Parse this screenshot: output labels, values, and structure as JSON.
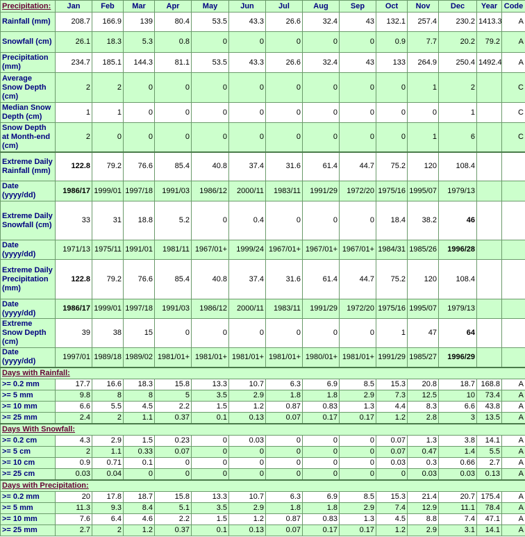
{
  "header": {
    "title": "Precipitation:",
    "columns": [
      "Jan",
      "Feb",
      "Mar",
      "Apr",
      "May",
      "Jun",
      "Jul",
      "Aug",
      "Sep",
      "Oct",
      "Nov",
      "Dec",
      "Year",
      "Code"
    ]
  },
  "sections": [
    {
      "rows": [
        {
          "label": "Rainfall (mm)",
          "cells": [
            "208.7",
            "166.9",
            "139",
            "80.4",
            "53.5",
            "43.3",
            "26.6",
            "32.4",
            "43",
            "132.1",
            "257.4",
            "230.2",
            "1413.3",
            "A"
          ]
        },
        {
          "label": "Snowfall (cm)",
          "cells": [
            "26.1",
            "18.3",
            "5.3",
            "0.8",
            "0",
            "0",
            "0",
            "0",
            "0",
            "0.9",
            "7.7",
            "20.2",
            "79.2",
            "A"
          ]
        },
        {
          "label": "Precipitation (mm)",
          "cells": [
            "234.7",
            "185.1",
            "144.3",
            "81.1",
            "53.5",
            "43.3",
            "26.6",
            "32.4",
            "43",
            "133",
            "264.9",
            "250.4",
            "1492.4",
            "A"
          ]
        },
        {
          "label": "Average Snow Depth (cm)",
          "cells": [
            "2",
            "2",
            "0",
            "0",
            "0",
            "0",
            "0",
            "0",
            "0",
            "0",
            "1",
            "2",
            null,
            "C"
          ]
        },
        {
          "label": "Median Snow Depth (cm)",
          "cells": [
            "1",
            "1",
            "0",
            "0",
            "0",
            "0",
            "0",
            "0",
            "0",
            "0",
            "0",
            "1",
            null,
            "C"
          ]
        },
        {
          "label": "Snow Depth at Month-end (cm)",
          "cells": [
            "2",
            "0",
            "0",
            "0",
            "0",
            "0",
            "0",
            "0",
            "0",
            "0",
            "1",
            "6",
            null,
            "C"
          ]
        },
        {
          "label": "Extreme Daily Rainfall (mm)",
          "cells": [
            "122.8",
            "79.2",
            "76.6",
            "85.4",
            "40.8",
            "37.4",
            "31.6",
            "61.4",
            "44.7",
            "75.2",
            "120",
            "108.4"
          ],
          "bold": [
            0
          ]
        },
        {
          "label": "Date (yyyy/dd)",
          "cells": [
            "1986/17",
            "1999/01",
            "1997/18",
            "1991/03",
            "1986/12",
            "2000/11",
            "1983/11",
            "1991/29",
            "1972/20",
            "1975/16",
            "1995/07",
            "1979/13"
          ],
          "bold": [
            0
          ]
        },
        {
          "label": "Extreme Daily Snowfall (cm)",
          "cells": [
            "33",
            "31",
            "18.8",
            "5.2",
            "0",
            "0.4",
            "0",
            "0",
            "0",
            "18.4",
            "38.2",
            "46"
          ],
          "bold": [
            11
          ]
        },
        {
          "label": "Date (yyyy/dd)",
          "cells": [
            "1971/13",
            "1975/11",
            "1991/01",
            "1981/11",
            "1967/01+",
            "1999/24",
            "1967/01+",
            "1967/01+",
            "1967/01+",
            "1984/31",
            "1985/26",
            "1996/28"
          ],
          "bold": [
            11
          ]
        },
        {
          "label": "Extreme Daily Precipitation (mm)",
          "cells": [
            "122.8",
            "79.2",
            "76.6",
            "85.4",
            "40.8",
            "37.4",
            "31.6",
            "61.4",
            "44.7",
            "75.2",
            "120",
            "108.4"
          ],
          "bold": [
            0
          ]
        },
        {
          "label": "Date (yyyy/dd)",
          "cells": [
            "1986/17",
            "1999/01",
            "1997/18",
            "1991/03",
            "1986/12",
            "2000/11",
            "1983/11",
            "1991/29",
            "1972/20",
            "1975/16",
            "1995/07",
            "1979/13"
          ],
          "bold": [
            0
          ]
        },
        {
          "label": "Extreme Snow Depth (cm)",
          "cells": [
            "39",
            "38",
            "15",
            "0",
            "0",
            "0",
            "0",
            "0",
            "0",
            "1",
            "47",
            "64"
          ],
          "bold": [
            11
          ]
        },
        {
          "label": "Date (yyyy/dd)",
          "cells": [
            "1997/01",
            "1989/18",
            "1989/02",
            "1981/01+",
            "1981/01+",
            "1981/01+",
            "1981/01+",
            "1980/01+",
            "1981/01+",
            "1991/29",
            "1985/27",
            "1996/29"
          ],
          "bold": [
            11
          ]
        }
      ]
    },
    {
      "title": "Days with Rainfall:",
      "rows": [
        {
          "label": ">= 0.2 mm",
          "cells": [
            "17.7",
            "16.6",
            "18.3",
            "15.8",
            "13.3",
            "10.7",
            "6.3",
            "6.9",
            "8.5",
            "15.3",
            "20.8",
            "18.7",
            "168.8",
            "A"
          ]
        },
        {
          "label": ">= 5 mm",
          "cells": [
            "9.8",
            "8",
            "8",
            "5",
            "3.5",
            "2.9",
            "1.8",
            "1.8",
            "2.9",
            "7.3",
            "12.5",
            "10",
            "73.4",
            "A"
          ]
        },
        {
          "label": ">= 10 mm",
          "cells": [
            "6.6",
            "5.5",
            "4.5",
            "2.2",
            "1.5",
            "1.2",
            "0.87",
            "0.83",
            "1.3",
            "4.4",
            "8.3",
            "6.6",
            "43.8",
            "A"
          ]
        },
        {
          "label": ">= 25 mm",
          "cells": [
            "2.4",
            "2",
            "1.1",
            "0.37",
            "0.1",
            "0.13",
            "0.07",
            "0.17",
            "0.17",
            "1.2",
            "2.8",
            "3",
            "13.5",
            "A"
          ]
        }
      ]
    },
    {
      "title": "Days With Snowfall:",
      "rows": [
        {
          "label": ">= 0.2 cm",
          "cells": [
            "4.3",
            "2.9",
            "1.5",
            "0.23",
            "0",
            "0.03",
            "0",
            "0",
            "0",
            "0.07",
            "1.3",
            "3.8",
            "14.1",
            "A"
          ]
        },
        {
          "label": ">= 5 cm",
          "cells": [
            "2",
            "1.1",
            "0.33",
            "0.07",
            "0",
            "0",
            "0",
            "0",
            "0",
            "0.07",
            "0.47",
            "1.4",
            "5.5",
            "A"
          ]
        },
        {
          "label": ">= 10 cm",
          "cells": [
            "0.9",
            "0.71",
            "0.1",
            "0",
            "0",
            "0",
            "0",
            "0",
            "0",
            "0.03",
            "0.3",
            "0.66",
            "2.7",
            "A"
          ]
        },
        {
          "label": ">= 25 cm",
          "cells": [
            "0.03",
            "0.04",
            "0",
            "0",
            "0",
            "0",
            "0",
            "0",
            "0",
            "0",
            "0.03",
            "0.03",
            "0.13",
            "A"
          ]
        }
      ]
    },
    {
      "title": "Days with Precipitation:",
      "rows": [
        {
          "label": ">= 0.2 mm",
          "cells": [
            "20",
            "17.8",
            "18.7",
            "15.8",
            "13.3",
            "10.7",
            "6.3",
            "6.9",
            "8.5",
            "15.3",
            "21.4",
            "20.7",
            "175.4",
            "A"
          ]
        },
        {
          "label": ">= 5 mm",
          "cells": [
            "11.3",
            "9.3",
            "8.4",
            "5.1",
            "3.5",
            "2.9",
            "1.8",
            "1.8",
            "2.9",
            "7.4",
            "12.9",
            "11.1",
            "78.4",
            "A"
          ]
        },
        {
          "label": ">= 10 mm",
          "cells": [
            "7.6",
            "6.4",
            "4.6",
            "2.2",
            "1.5",
            "1.2",
            "0.87",
            "0.83",
            "1.3",
            "4.5",
            "8.8",
            "7.4",
            "47.1",
            "A"
          ]
        },
        {
          "label": ">= 25 mm",
          "cells": [
            "2.7",
            "2",
            "1.2",
            "0.37",
            "0.1",
            "0.13",
            "0.07",
            "0.17",
            "0.17",
            "1.2",
            "2.9",
            "3.1",
            "14.1",
            "A"
          ]
        }
      ]
    }
  ]
}
